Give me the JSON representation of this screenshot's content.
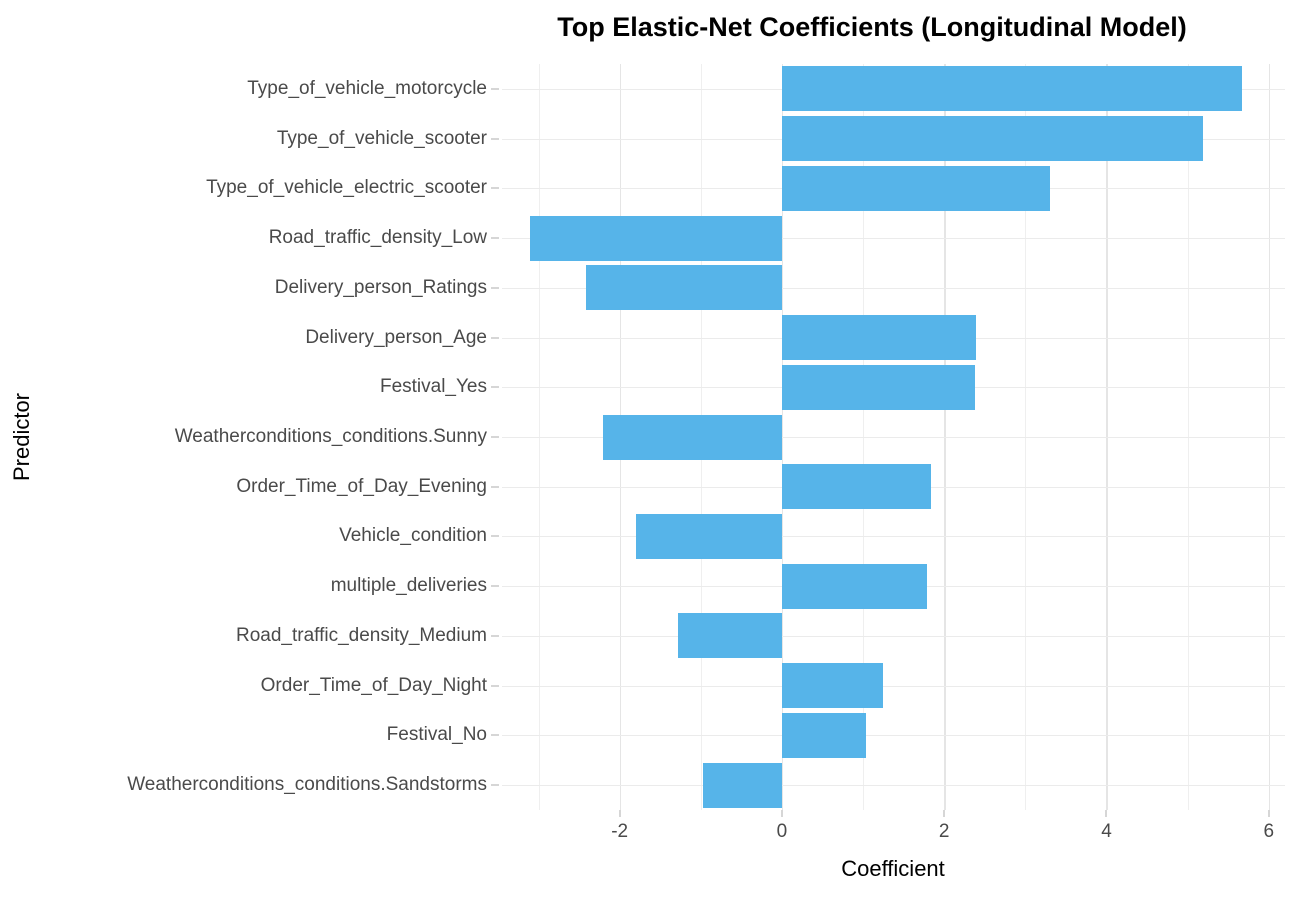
{
  "chart_data": {
    "type": "bar",
    "orientation": "horizontal",
    "title": "Top Elastic-Net Coefficients (Longitudinal Model)",
    "xlabel": "Coefficient",
    "ylabel": "Predictor",
    "categories": [
      "Type_of_vehicle_motorcycle",
      "Type_of_vehicle_scooter",
      "Type_of_vehicle_electric_scooter",
      "Road_traffic_density_Low",
      "Delivery_person_Ratings",
      "Delivery_person_Age",
      "Festival_Yes",
      "Weatherconditions_conditions.Sunny",
      "Order_Time_of_Day_Evening",
      "Vehicle_condition",
      "multiple_deliveries",
      "Road_traffic_density_Medium",
      "Order_Time_of_Day_Night",
      "Festival_No",
      "Weatherconditions_conditions.Sandstorms"
    ],
    "values": [
      5.67,
      5.19,
      3.31,
      -3.1,
      -2.42,
      2.39,
      2.38,
      -2.21,
      1.84,
      -1.8,
      1.79,
      -1.28,
      1.24,
      1.04,
      -0.97
    ],
    "bar_color": "#56B4E9",
    "x_axis": {
      "min": -3.45,
      "max": 6.2,
      "major_ticks": [
        -2,
        0,
        2,
        4,
        6
      ],
      "minor_ticks": [
        -3,
        -1,
        1,
        3,
        5
      ],
      "tick_labels": [
        "-2",
        "0",
        "2",
        "4",
        "6"
      ]
    },
    "grid": true,
    "legend": false,
    "background": "#ffffff",
    "gridline_color": "#ebebeb",
    "tick_label_color": "#4a4a4a"
  }
}
